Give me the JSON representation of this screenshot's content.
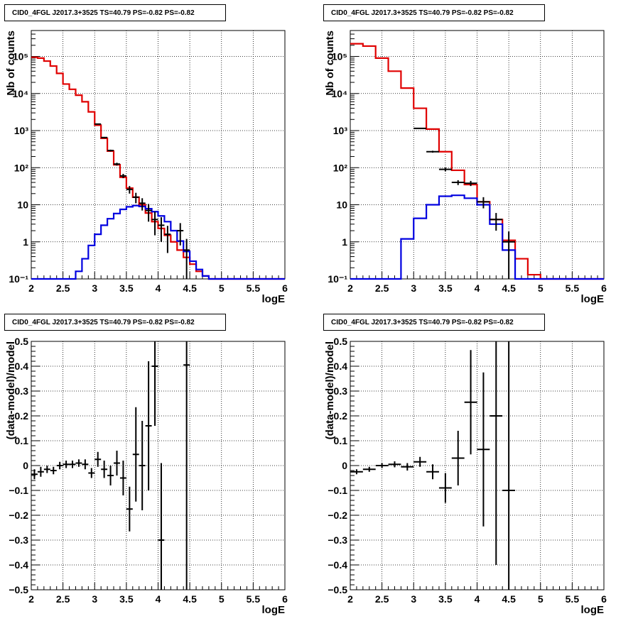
{
  "chart_data": [
    {
      "type": "histogram",
      "title": "CID0_4FGL J2017.3+3525 TS=40.79 PS=-0.82 PS=-0.82",
      "xlabel": "logE",
      "ylabel": "Nb of counts",
      "xlim": [
        2,
        6
      ],
      "ylim": [
        0.1,
        500000
      ],
      "yscale": "log",
      "grid": true,
      "x_tick_labels": [
        "2",
        "2.5",
        "3",
        "3.5",
        "4",
        "4.5",
        "5",
        "5.5",
        "6"
      ],
      "y_tick_labels": [
        "10⁻¹",
        "1",
        "10",
        "10²",
        "10³",
        "10⁴",
        "10⁵"
      ],
      "bin_edges": [
        2.0,
        2.1,
        2.2,
        2.3,
        2.4,
        2.5,
        2.6,
        2.7,
        2.8,
        2.9,
        3.0,
        3.1,
        3.2,
        3.3,
        3.4,
        3.5,
        3.6,
        3.7,
        3.8,
        3.9,
        4.0,
        4.1,
        4.2,
        4.3,
        4.4,
        4.5,
        4.6,
        4.7,
        4.8,
        4.9,
        5.0,
        5.1,
        5.2,
        5.3,
        5.4,
        5.5,
        5.6,
        5.7,
        5.8,
        5.9,
        6.0
      ],
      "series": [
        {
          "color": "#e00000",
          "values": [
            95000,
            90000,
            75000,
            55000,
            35000,
            18000,
            13000,
            9000,
            6000,
            3200,
            1400,
            620,
            280,
            120,
            55,
            28,
            16,
            10,
            6,
            3.5,
            2.3,
            1.5,
            1.0,
            0.6,
            0.38,
            0.25,
            0.16,
            0.12,
            0.1,
            0.1,
            0.1,
            0.1,
            0.1,
            0.1,
            0.1,
            0.1,
            0.1,
            0.1,
            0.1,
            0.1
          ]
        },
        {
          "color": "#0000e0",
          "values": [
            0.1,
            0.1,
            0.1,
            0.1,
            0.1,
            0.1,
            0.1,
            0.16,
            0.35,
            0.8,
            1.6,
            2.8,
            4.2,
            5.8,
            7.5,
            8.8,
            9.5,
            9.0,
            7.8,
            6.5,
            5.0,
            3.5,
            2.0,
            1.05,
            0.55,
            0.3,
            0.18,
            0.12,
            0.1,
            0.1,
            0.1,
            0.1,
            0.1,
            0.1,
            0.1,
            0.1,
            0.1,
            0.1,
            0.1,
            0.1
          ]
        }
      ],
      "points": {
        "x": [
          3.05,
          3.15,
          3.25,
          3.35,
          3.45,
          3.55,
          3.65,
          3.75,
          3.85,
          3.95,
          4.05,
          4.15,
          4.35,
          4.45
        ],
        "y": [
          1500,
          650,
          290,
          125,
          60,
          26,
          16,
          11,
          7,
          4,
          2.8,
          1.6,
          2.0,
          0.6
        ],
        "yerr_lo": [
          40,
          25,
          16,
          11,
          8,
          6,
          5,
          4,
          3.5,
          2.5,
          1.8,
          1.1,
          1.2,
          0.5
        ],
        "yerr_hi": [
          40,
          25,
          16,
          11,
          8,
          6,
          5,
          4,
          3.5,
          2.5,
          1.8,
          1.1,
          1.2,
          0.6
        ]
      }
    },
    {
      "type": "histogram",
      "title": "CID0_4FGL J2017.3+3525 TS=40.79 PS=-0.82 PS=-0.82",
      "xlabel": "logE",
      "ylabel": "Nb of counts",
      "xlim": [
        2,
        6
      ],
      "ylim": [
        0.1,
        500000
      ],
      "yscale": "log",
      "grid": true,
      "x_tick_labels": [
        "2",
        "2.5",
        "3",
        "3.5",
        "4",
        "4.5",
        "5",
        "5.5",
        "6"
      ],
      "y_tick_labels": [
        "10⁻¹",
        "1",
        "10",
        "10²",
        "10³",
        "10⁴",
        "10⁵"
      ],
      "bin_edges": [
        2.0,
        2.2,
        2.4,
        2.6,
        2.8,
        3.0,
        3.2,
        3.4,
        3.6,
        3.8,
        4.0,
        4.2,
        4.4,
        4.6,
        4.8,
        5.0,
        5.2,
        5.4,
        5.6,
        5.8,
        6.0
      ],
      "series": [
        {
          "color": "#e00000",
          "values": [
            220000,
            190000,
            90000,
            40000,
            14000,
            4000,
            1100,
            270,
            85,
            35,
            12,
            4,
            1.1,
            0.35,
            0.13,
            0.1,
            0.1,
            0.1,
            0.1,
            0.1
          ]
        },
        {
          "color": "#0000e0",
          "values": [
            0.1,
            0.1,
            0.1,
            0.1,
            1.2,
            4.3,
            10,
            17,
            18,
            15,
            10,
            3,
            0.6,
            0.1,
            0.1,
            0.1,
            0.1,
            0.1,
            0.1,
            0.1
          ]
        }
      ],
      "points": {
        "x": [
          3.1,
          3.3,
          3.5,
          3.7,
          3.9,
          4.1,
          4.3,
          4.5
        ],
        "y": [
          1150,
          270,
          90,
          40,
          38,
          12,
          4,
          1.0
        ],
        "yerr_lo": [
          35,
          16,
          10,
          6,
          6,
          4,
          2,
          0.9
        ],
        "yerr_hi": [
          35,
          16,
          10,
          6,
          6,
          4,
          2,
          0.9
        ]
      }
    },
    {
      "type": "scatter",
      "title": "CID0_4FGL J2017.3+3525 TS=40.79 PS=-0.82 PS=-0.82",
      "xlabel": "logE",
      "ylabel": "(data-model)/model",
      "xlim": [
        2,
        6
      ],
      "ylim": [
        -0.5,
        0.5
      ],
      "yscale": "linear",
      "grid": true,
      "x_tick_labels": [
        "2",
        "2.5",
        "3",
        "3.5",
        "4",
        "4.5",
        "5",
        "5.5",
        "6"
      ],
      "y_tick_labels": [
        "−0.5",
        "−0.4",
        "−0.3",
        "−0.2",
        "−0.1",
        "0",
        "0.1",
        "0.2",
        "0.3",
        "0.4",
        "0.5"
      ],
      "points": {
        "x": [
          2.05,
          2.15,
          2.25,
          2.35,
          2.45,
          2.55,
          2.65,
          2.75,
          2.85,
          2.95,
          3.05,
          3.15,
          3.25,
          3.35,
          3.45,
          3.55,
          3.65,
          3.75,
          3.85,
          3.95,
          4.05,
          4.45
        ],
        "y": [
          -0.035,
          -0.025,
          -0.015,
          -0.02,
          0.0,
          0.005,
          0.005,
          0.01,
          0.005,
          -0.03,
          0.025,
          -0.015,
          -0.04,
          0.01,
          -0.05,
          -0.175,
          0.045,
          0.0,
          0.16,
          0.4,
          -0.3,
          0.405
        ],
        "yerr": [
          0.02,
          0.02,
          0.015,
          0.015,
          0.015,
          0.015,
          0.015,
          0.015,
          0.02,
          0.02,
          0.03,
          0.035,
          0.04,
          0.05,
          0.07,
          0.09,
          0.19,
          0.18,
          0.26,
          0.24,
          0.31,
          0.95
        ]
      }
    },
    {
      "type": "scatter",
      "title": "CID0_4FGL J2017.3+3525 TS=40.79 PS=-0.82 PS=-0.82",
      "xlabel": "logE",
      "ylabel": "(data-model)/model",
      "xlim": [
        2,
        6
      ],
      "ylim": [
        -0.5,
        0.5
      ],
      "yscale": "linear",
      "grid": true,
      "x_tick_labels": [
        "2",
        "2.5",
        "3",
        "3.5",
        "4",
        "4.5",
        "5",
        "5.5",
        "6"
      ],
      "y_tick_labels": [
        "−0.5",
        "−0.4",
        "−0.3",
        "−0.2",
        "−0.1",
        "0",
        "0.1",
        "0.2",
        "0.3",
        "0.4",
        "0.5"
      ],
      "points": {
        "x": [
          2.1,
          2.3,
          2.5,
          2.7,
          2.9,
          3.1,
          3.3,
          3.5,
          3.7,
          3.9,
          4.1,
          4.3,
          4.5
        ],
        "y": [
          -0.025,
          -0.015,
          0.0,
          0.005,
          -0.005,
          0.015,
          -0.025,
          -0.09,
          0.03,
          0.255,
          0.065,
          0.2,
          -0.1
        ],
        "yerr": [
          0.01,
          0.01,
          0.01,
          0.012,
          0.015,
          0.02,
          0.03,
          0.06,
          0.11,
          0.21,
          0.31,
          0.6,
          0.9
        ]
      }
    }
  ]
}
